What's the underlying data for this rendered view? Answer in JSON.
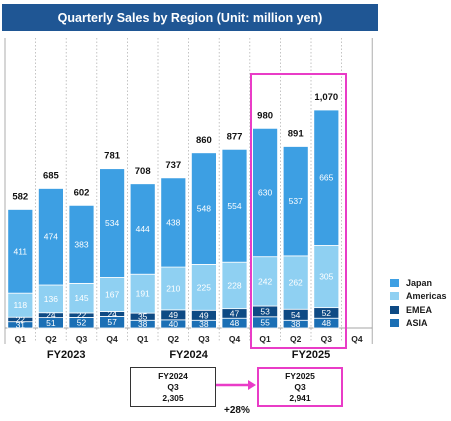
{
  "title": "Quarterly Sales by Region (Unit: million yen)",
  "chart_data": {
    "type": "bar",
    "stacked": true,
    "title": "Quarterly Sales by Region (Unit: million yen)",
    "groups": [
      {
        "label": "FY2023",
        "quarters": [
          "Q1",
          "Q2",
          "Q3",
          "Q4"
        ]
      },
      {
        "label": "FY2024",
        "quarters": [
          "Q1",
          "Q2",
          "Q3",
          "Q4"
        ]
      },
      {
        "label": "FY2025",
        "quarters": [
          "Q1",
          "Q2",
          "Q3",
          "Q4"
        ]
      }
    ],
    "categories": [
      "Q1",
      "Q2",
      "Q3",
      "Q4",
      "Q1",
      "Q2",
      "Q3",
      "Q4",
      "Q1",
      "Q2",
      "Q3",
      "Q4"
    ],
    "series": [
      {
        "name": "ASIA",
        "color": "#1b6fb5",
        "values": [
          31,
          51,
          52,
          57,
          38,
          40,
          38,
          48,
          55,
          38,
          48,
          null
        ]
      },
      {
        "name": "EMEA",
        "color": "#0e4a84",
        "values": [
          22,
          24,
          22,
          24,
          35,
          49,
          49,
          47,
          53,
          54,
          52,
          null
        ]
      },
      {
        "name": "Americas",
        "color": "#8fd0f2",
        "values": [
          118,
          136,
          145,
          167,
          191,
          210,
          225,
          228,
          242,
          262,
          305,
          null
        ]
      },
      {
        "name": "Japan",
        "color": "#3d9fe3",
        "values": [
          411,
          474,
          383,
          534,
          444,
          438,
          548,
          554,
          630,
          537,
          665,
          null
        ]
      }
    ],
    "totals": [
      582,
      685,
      602,
      781,
      708,
      737,
      860,
      877,
      980,
      891,
      1070,
      null
    ],
    "total_labels": [
      "582",
      "685",
      "602",
      "781",
      "708",
      "737",
      "860",
      "877",
      "980",
      "891",
      "1,070",
      ""
    ],
    "ylim": [
      0,
      1100
    ],
    "legend_position": "right",
    "highlight": "FY2025"
  },
  "legend": [
    {
      "name": "Japan",
      "color": "#3d9fe3"
    },
    {
      "name": "Americas",
      "color": "#8fd0f2"
    },
    {
      "name": "EMEA",
      "color": "#0e4a84"
    },
    {
      "name": "ASIA",
      "color": "#1b6fb5"
    }
  ],
  "comparison": {
    "fy2024": {
      "year": "FY2024",
      "quarter": "Q3",
      "value": "2,305"
    },
    "fy2025": {
      "year": "FY2025",
      "quarter": "Q3",
      "value": "2,941"
    },
    "growth": "+28%"
  },
  "colors": {
    "title_bar": "#1f5694",
    "highlight": "#e93cc7",
    "connector": "#e93cc7",
    "box_border": "#333333"
  }
}
